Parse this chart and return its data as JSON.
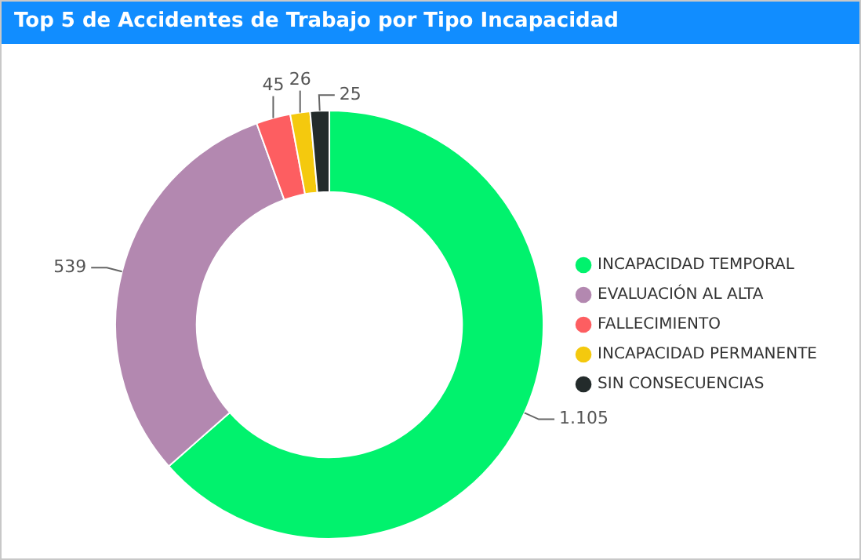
{
  "chart_data": {
    "type": "donut",
    "title": "Top 5 de Accidentes de Trabajo por Tipo Incapacidad",
    "categories": [
      "INCAPACIDAD TEMPORAL",
      "EVALUACIÓN AL ALTA",
      "FALLECIMIENTO",
      "INCAPACIDAD PERMANENTE",
      "SIN CONSECUENCIAS"
    ],
    "values": [
      1105,
      539,
      45,
      26,
      25
    ],
    "value_labels": [
      "1.105",
      "539",
      "45",
      "26",
      "25"
    ],
    "colors": [
      "#01f26d",
      "#b388b0",
      "#fd5e61",
      "#f4c90e",
      "#232b2b"
    ],
    "legend": "right"
  }
}
